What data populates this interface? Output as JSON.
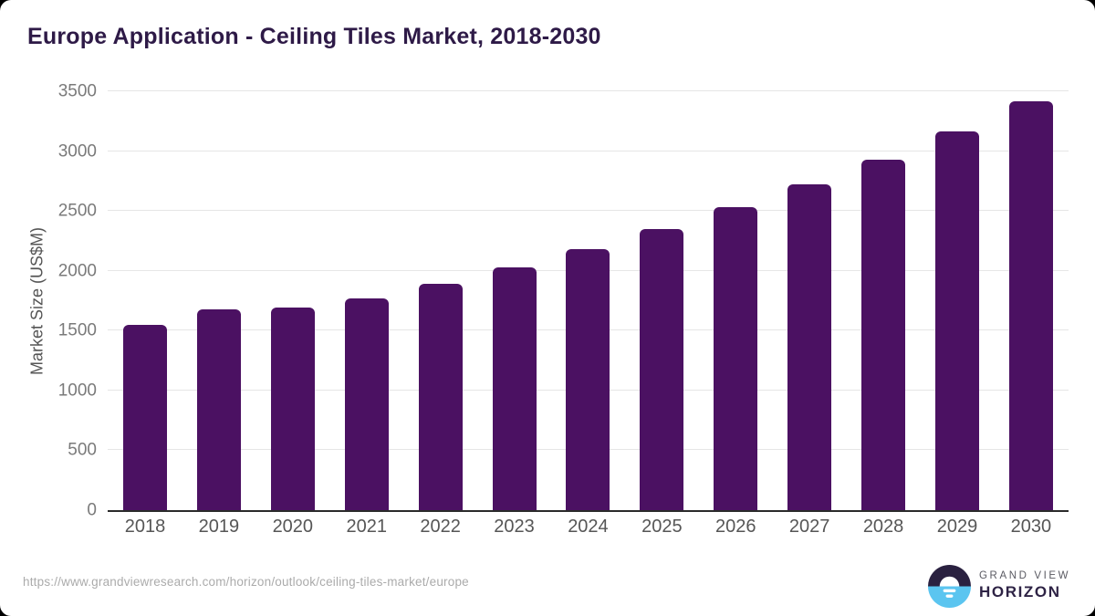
{
  "window": {
    "background": "#000000",
    "card_background": "#ffffff"
  },
  "header": {
    "title": "Europe Application - Ceiling Tiles Market, 2018-2030"
  },
  "footer": {
    "source_url": "https://www.grandviewresearch.com/horizon/outlook/ceiling-tiles-market/europe",
    "brand": {
      "line1": "GRAND VIEW",
      "line2": "HORIZON"
    }
  },
  "icons": {
    "logo": "grand-view-horizon-sunrise-logo"
  },
  "colors": {
    "bar": "#4b1162",
    "title_text": "#2e1a47",
    "axis_line": "#2b2b2b",
    "gridline": "#e6e6e6",
    "ytick_text": "#7a7a7a",
    "xtick_text": "#565656",
    "url_text": "#ababab",
    "logo_dark": "#2a2140",
    "logo_blue": "#5bc5f0",
    "logo_sun": "#ffffff"
  },
  "chart_data": {
    "type": "bar",
    "title": "Europe Application - Ceiling Tiles Market, 2018-2030",
    "categories": [
      "2018",
      "2019",
      "2020",
      "2021",
      "2022",
      "2023",
      "2024",
      "2025",
      "2026",
      "2027",
      "2028",
      "2029",
      "2030"
    ],
    "values": [
      1550,
      1675,
      1690,
      1770,
      1890,
      2025,
      2180,
      2350,
      2530,
      2720,
      2930,
      3165,
      3415
    ],
    "xlabel": "",
    "ylabel": "Market Size (US$M)",
    "ylim": [
      0,
      3500
    ],
    "ytick_step": 500,
    "yticks": [
      0,
      500,
      1000,
      1500,
      2000,
      2500,
      3000,
      3500
    ],
    "grid": true,
    "legend": false,
    "bar_color": "#4b1162"
  }
}
